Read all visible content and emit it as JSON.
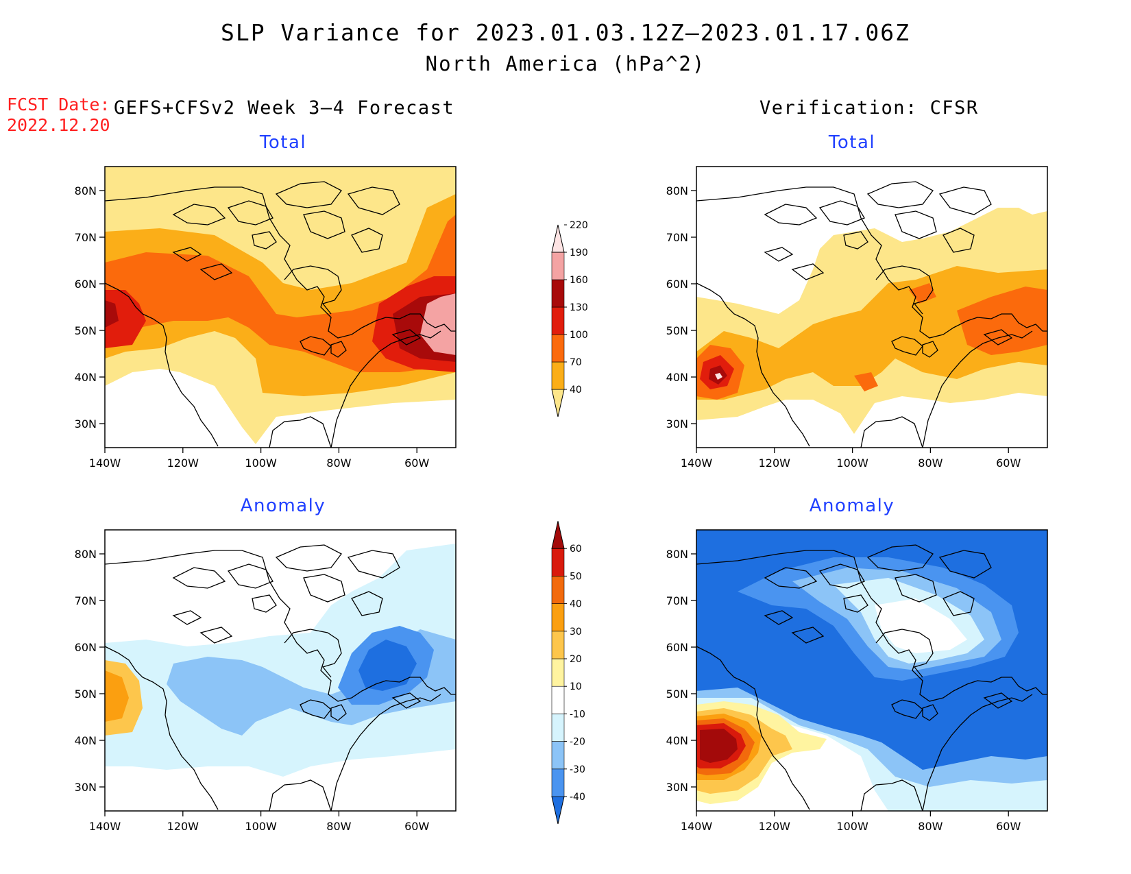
{
  "title": "SLP Variance for 2023.01.03.12Z–2023.01.17.06Z",
  "subtitle": "North America (hPa^2)",
  "fcst_date_label": "FCST Date:",
  "fcst_date_value": "2022.12.20",
  "left_heading": "GEFS+CFSv2 Week 3–4 Forecast",
  "right_heading": "Verification: CFSR",
  "panel_labels": {
    "total": "Total",
    "anomaly": "Anomaly"
  },
  "axes": {
    "lat_ticks": [
      "80N",
      "70N",
      "60N",
      "50N",
      "40N",
      "30N"
    ],
    "lon_ticks": [
      "140W",
      "120W",
      "100W",
      "80W",
      "60W"
    ]
  },
  "total_colorbar": {
    "levels": [
      "40",
      "70",
      "100",
      "130",
      "160",
      "190",
      "220"
    ],
    "colors": [
      "#fde68a",
      "#fbae18",
      "#fb6a0c",
      "#e11d0c",
      "#a80a0a",
      "#f4a3a3",
      "#fde3e3"
    ]
  },
  "anomaly_colorbar": {
    "levels": [
      "-40",
      "-30",
      "-20",
      "-10",
      "10",
      "20",
      "30",
      "40",
      "50",
      "60"
    ],
    "colors": [
      "#1e6fe0",
      "#4a94f0",
      "#8cc4f7",
      "#d6f4fd",
      "#ffffff",
      "#fff4a0",
      "#fdc64c",
      "#fb9f10",
      "#f26a0c",
      "#d91a0c",
      "#a30a0a"
    ]
  },
  "map_colors": {
    "coast": "#000000",
    "background": "#ffffff"
  }
}
